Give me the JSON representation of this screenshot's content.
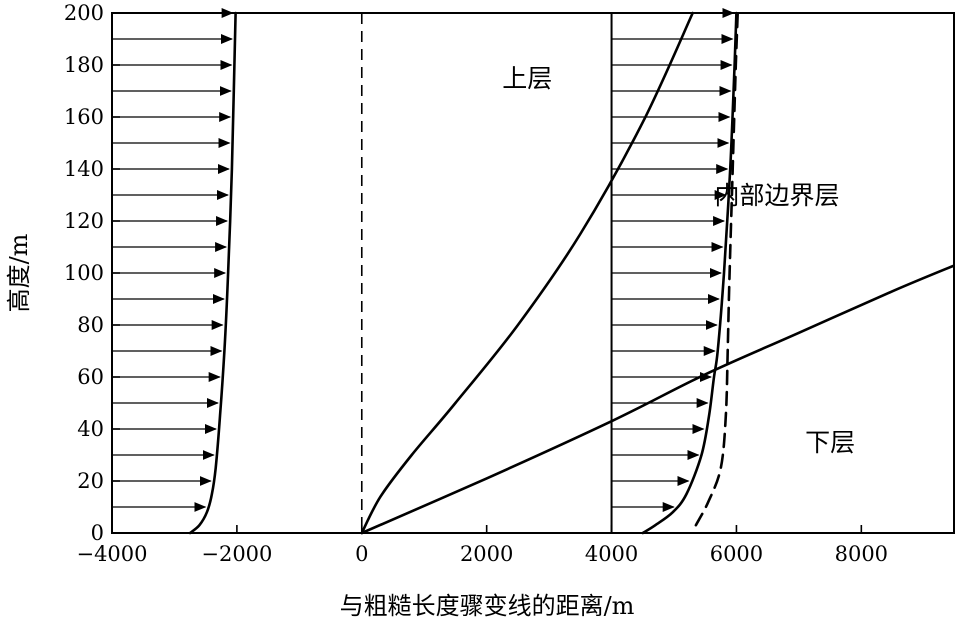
{
  "chart_data": {
    "type": "line",
    "xlabel": "与粗糙长度骤变线的距离/m",
    "ylabel": "高度/m",
    "xlim": [
      -4000,
      9500
    ],
    "ylim": [
      0,
      200
    ],
    "x_ticks": [
      {
        "value": -4000,
        "label": "−4000"
      },
      {
        "value": -2000,
        "label": "−2000"
      },
      {
        "value": 0,
        "label": "0"
      },
      {
        "value": 2000,
        "label": "2000"
      },
      {
        "value": 4000,
        "label": "4000"
      },
      {
        "value": 6000,
        "label": "6000"
      },
      {
        "value": 8000,
        "label": "8000"
      }
    ],
    "y_ticks": [
      {
        "value": 0,
        "label": "0"
      },
      {
        "value": 20,
        "label": "20"
      },
      {
        "value": 40,
        "label": "40"
      },
      {
        "value": 60,
        "label": "60"
      },
      {
        "value": 80,
        "label": "80"
      },
      {
        "value": 100,
        "label": "100"
      },
      {
        "value": 120,
        "label": "120"
      },
      {
        "value": 140,
        "label": "140"
      },
      {
        "value": 160,
        "label": "160"
      },
      {
        "value": 180,
        "label": "180"
      },
      {
        "value": 200,
        "label": "200"
      }
    ],
    "annotations": [
      {
        "id": "upper",
        "text": "上层",
        "x": 2650,
        "y": 175
      },
      {
        "id": "ibl",
        "text": "内部边界层",
        "x": 6650,
        "y": 130
      },
      {
        "id": "lower",
        "text": "下层",
        "x": 7500,
        "y": 35
      }
    ],
    "reference_lines": [
      {
        "id": "left-profile-origin",
        "x": -4000
      },
      {
        "id": "roughness-change-line",
        "x": 0,
        "dashed": true
      },
      {
        "id": "right-profile-origin",
        "x": 4000
      }
    ],
    "series": [
      {
        "id": "upwind-wind-profile",
        "style": "solid",
        "x": [
          -2750,
          -2600,
          -2480,
          -2400,
          -2340,
          -2270,
          -2200,
          -2140,
          -2080,
          -2050,
          -2020
        ],
        "y": [
          0,
          3,
          8,
          15,
          25,
          45,
          70,
          100,
          140,
          170,
          200
        ]
      },
      {
        "id": "downwind-wind-profile",
        "style": "solid",
        "x": [
          4500,
          4700,
          4980,
          5200,
          5440,
          5560,
          5640,
          5700,
          5800,
          5900,
          5970,
          6000
        ],
        "y": [
          0,
          3,
          8,
          15,
          30,
          45,
          60,
          70,
          100,
          140,
          180,
          200
        ]
      },
      {
        "id": "upstream-reference-profile",
        "style": "dashed",
        "x": [
          5350,
          5550,
          5750,
          5830,
          5860,
          5890,
          5940,
          5990,
          6020
        ],
        "y": [
          3,
          12,
          25,
          45,
          70,
          100,
          140,
          180,
          200
        ]
      },
      {
        "id": "upper-layer-boundary",
        "style": "solid",
        "x": [
          0,
          300,
          800,
          1500,
          2500,
          3500,
          4500,
          5300
        ],
        "y": [
          0,
          14,
          30,
          50,
          80,
          115,
          158,
          200
        ]
      },
      {
        "id": "lower-layer-boundary",
        "style": "solid",
        "x": [
          0,
          2000,
          4000,
          5500,
          7000,
          8500,
          9500
        ],
        "y": [
          0,
          21,
          43,
          61,
          77,
          93,
          103
        ]
      }
    ],
    "vectors": [
      {
        "id": "upwind-velocity-arrows",
        "base_x": -4000,
        "heights": [
          10,
          20,
          30,
          40,
          50,
          60,
          70,
          80,
          90,
          100,
          110,
          120,
          130,
          140,
          150,
          160,
          170,
          180,
          190,
          200
        ],
        "ends_at_series": "upwind-wind-profile"
      },
      {
        "id": "downwind-velocity-arrows",
        "base_x": 4000,
        "heights": [
          10,
          20,
          30,
          40,
          50,
          60,
          70,
          80,
          90,
          100,
          110,
          120,
          130,
          140,
          150,
          160,
          170,
          180,
          190,
          200
        ],
        "ends_at_series": "downwind-wind-profile"
      }
    ]
  }
}
